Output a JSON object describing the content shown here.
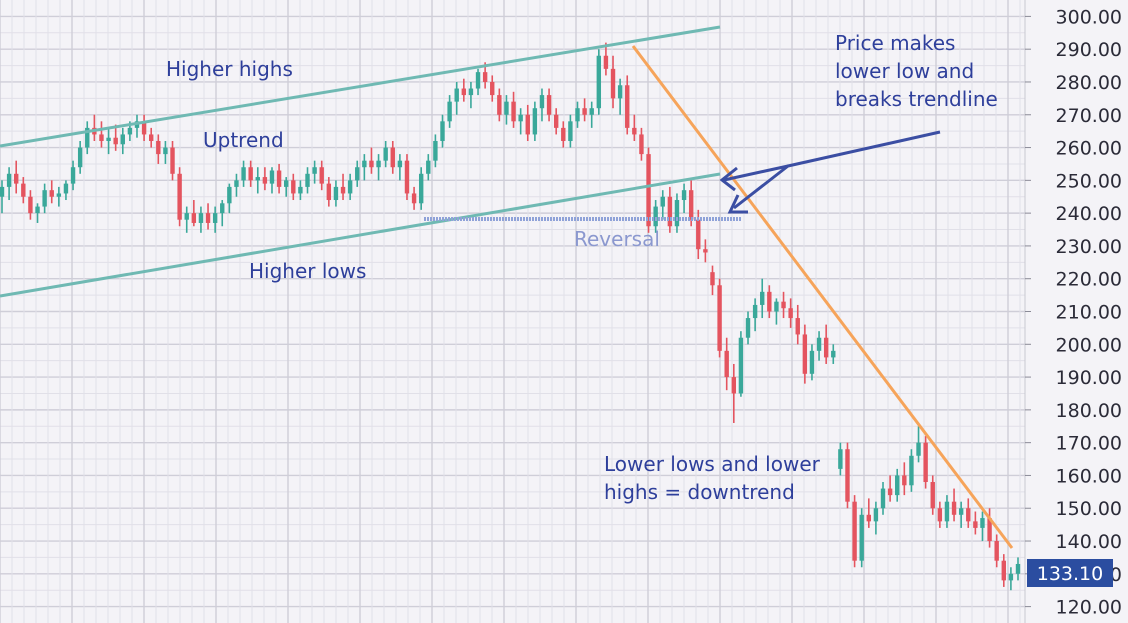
{
  "chart_data": {
    "type": "candlestick",
    "ylim": [
      115,
      305
    ],
    "y_ticks": [
      "300.00",
      "290.00",
      "280.00",
      "270.00",
      "260.00",
      "250.00",
      "240.00",
      "230.00",
      "220.00",
      "210.00",
      "200.00",
      "190.00",
      "180.00",
      "170.00",
      "160.00",
      "150.00",
      "140.00",
      "130.00",
      "120.00"
    ],
    "current_price": "133.10",
    "colors": {
      "up": "#3aa89a",
      "down": "#e4545f",
      "channel": "#6fb9b3",
      "trend": "#f6a45a",
      "arrow": "#3b4ea3",
      "tag": "#2b4da0",
      "reversal_line": "#8fa2d8"
    },
    "candles": [
      [
        245,
        250,
        240,
        248
      ],
      [
        248,
        254,
        244,
        252
      ],
      [
        252,
        256,
        246,
        249
      ],
      [
        249,
        251,
        243,
        245
      ],
      [
        245,
        247,
        238,
        240
      ],
      [
        240,
        243,
        237,
        242
      ],
      [
        242,
        249,
        240,
        247
      ],
      [
        247,
        250,
        243,
        245
      ],
      [
        245,
        248,
        242,
        246
      ],
      [
        246,
        250,
        244,
        249
      ],
      [
        249,
        256,
        247,
        254
      ],
      [
        254,
        262,
        252,
        260
      ],
      [
        260,
        268,
        258,
        266
      ],
      [
        266,
        270,
        262,
        264
      ],
      [
        264,
        268,
        260,
        262
      ],
      [
        262,
        266,
        258,
        263
      ],
      [
        263,
        267,
        259,
        261
      ],
      [
        261,
        266,
        258,
        264
      ],
      [
        264,
        268,
        262,
        266
      ],
      [
        266,
        270,
        263,
        268
      ],
      [
        268,
        270,
        262,
        264
      ],
      [
        264,
        266,
        260,
        262
      ],
      [
        262,
        264,
        255,
        258
      ],
      [
        258,
        262,
        255,
        260
      ],
      [
        260,
        262,
        250,
        252
      ],
      [
        252,
        254,
        236,
        238
      ],
      [
        238,
        242,
        234,
        240
      ],
      [
        240,
        244,
        236,
        237
      ],
      [
        237,
        242,
        234,
        240
      ],
      [
        240,
        243,
        235,
        237
      ],
      [
        237,
        242,
        234,
        240
      ],
      [
        240,
        244,
        236,
        243
      ],
      [
        243,
        249,
        240,
        248
      ],
      [
        248,
        252,
        245,
        250
      ],
      [
        250,
        256,
        248,
        254
      ],
      [
        254,
        256,
        248,
        250
      ],
      [
        250,
        254,
        246,
        251
      ],
      [
        251,
        254,
        247,
        249
      ],
      [
        249,
        254,
        246,
        253
      ],
      [
        253,
        255,
        246,
        248
      ],
      [
        248,
        251,
        245,
        250
      ],
      [
        250,
        252,
        244,
        246
      ],
      [
        246,
        250,
        244,
        248
      ],
      [
        248,
        254,
        246,
        252
      ],
      [
        252,
        256,
        249,
        254
      ],
      [
        254,
        256,
        247,
        249
      ],
      [
        249,
        251,
        242,
        244
      ],
      [
        244,
        250,
        242,
        248
      ],
      [
        248,
        252,
        244,
        246
      ],
      [
        246,
        252,
        244,
        250
      ],
      [
        250,
        256,
        248,
        254
      ],
      [
        254,
        258,
        250,
        256
      ],
      [
        256,
        260,
        252,
        254
      ],
      [
        254,
        258,
        250,
        256
      ],
      [
        256,
        262,
        254,
        260
      ],
      [
        260,
        262,
        252,
        254
      ],
      [
        254,
        258,
        250,
        256
      ],
      [
        256,
        258,
        244,
        246
      ],
      [
        246,
        248,
        241,
        243
      ],
      [
        243,
        254,
        241,
        252
      ],
      [
        252,
        258,
        250,
        256
      ],
      [
        256,
        264,
        254,
        262
      ],
      [
        262,
        270,
        260,
        268
      ],
      [
        268,
        276,
        266,
        274
      ],
      [
        274,
        280,
        270,
        278
      ],
      [
        278,
        281,
        274,
        276
      ],
      [
        276,
        280,
        272,
        278
      ],
      [
        278,
        284,
        276,
        283
      ],
      [
        283,
        286,
        278,
        280
      ],
      [
        280,
        282,
        274,
        276
      ],
      [
        276,
        278,
        268,
        270
      ],
      [
        270,
        276,
        267,
        274
      ],
      [
        274,
        277,
        266,
        268
      ],
      [
        268,
        272,
        264,
        270
      ],
      [
        270,
        273,
        262,
        264
      ],
      [
        264,
        274,
        262,
        272
      ],
      [
        272,
        278,
        268,
        276
      ],
      [
        276,
        278,
        268,
        270
      ],
      [
        270,
        272,
        264,
        266
      ],
      [
        266,
        268,
        260,
        262
      ],
      [
        262,
        270,
        260,
        268
      ],
      [
        268,
        274,
        266,
        272
      ],
      [
        272,
        275,
        268,
        270
      ],
      [
        270,
        274,
        266,
        272
      ],
      [
        272,
        290,
        270,
        288
      ],
      [
        288,
        292,
        282,
        284
      ],
      [
        284,
        288,
        272,
        275
      ],
      [
        275,
        281,
        270,
        279
      ],
      [
        279,
        282,
        264,
        266
      ],
      [
        266,
        270,
        262,
        264
      ],
      [
        264,
        266,
        256,
        258
      ],
      [
        258,
        260,
        234,
        236
      ],
      [
        236,
        244,
        234,
        242
      ],
      [
        242,
        247,
        238,
        245
      ],
      [
        245,
        248,
        234,
        236
      ],
      [
        236,
        246,
        234,
        244
      ],
      [
        244,
        249,
        240,
        247
      ],
      [
        247,
        250,
        236,
        238
      ],
      [
        238,
        241,
        226,
        229
      ],
      [
        229,
        232,
        225,
        228
      ],
      [
        222,
        224,
        215,
        218
      ],
      [
        218,
        220,
        196,
        198
      ],
      [
        198,
        202,
        186,
        190
      ],
      [
        190,
        194,
        176,
        185
      ],
      [
        185,
        204,
        184,
        202
      ],
      [
        202,
        210,
        200,
        208
      ],
      [
        208,
        214,
        204,
        212
      ],
      [
        212,
        220,
        208,
        216
      ],
      [
        216,
        218,
        208,
        210
      ],
      [
        210,
        214,
        206,
        213
      ],
      [
        213,
        216,
        208,
        211
      ],
      [
        211,
        214,
        205,
        208
      ],
      [
        208,
        212,
        200,
        203
      ],
      [
        203,
        206,
        188,
        191
      ],
      [
        191,
        200,
        189,
        198
      ],
      [
        198,
        204,
        195,
        202
      ],
      [
        202,
        206,
        194,
        196
      ],
      [
        196,
        200,
        194,
        198
      ],
      [
        162,
        170,
        160,
        168
      ],
      [
        168,
        170,
        150,
        152
      ],
      [
        152,
        154,
        132,
        134
      ],
      [
        134,
        150,
        132,
        148
      ],
      [
        148,
        153,
        144,
        146
      ],
      [
        146,
        152,
        142,
        150
      ],
      [
        150,
        158,
        148,
        156
      ],
      [
        156,
        160,
        152,
        154
      ],
      [
        154,
        162,
        152,
        160
      ],
      [
        160,
        164,
        154,
        157
      ],
      [
        157,
        168,
        155,
        166
      ],
      [
        166,
        175,
        164,
        170
      ],
      [
        170,
        172,
        156,
        158
      ],
      [
        158,
        160,
        148,
        150
      ],
      [
        150,
        152,
        144,
        146
      ],
      [
        146,
        154,
        144,
        152
      ],
      [
        152,
        156,
        146,
        148
      ],
      [
        148,
        152,
        144,
        150
      ],
      [
        150,
        153,
        144,
        146
      ],
      [
        146,
        149,
        142,
        144
      ],
      [
        144,
        149,
        140,
        147
      ],
      [
        147,
        150,
        138,
        140
      ],
      [
        140,
        142,
        132,
        134
      ],
      [
        134,
        136,
        126,
        128
      ],
      [
        128,
        132,
        125,
        130
      ],
      [
        130,
        135,
        128,
        133
      ]
    ],
    "annotations": {
      "higher_highs": "Higher highs",
      "uptrend": "Uptrend",
      "higher_lows": "Higher lows",
      "reversal": "Reversal",
      "price_makes_1": "Price makes",
      "price_makes_2": "lower low and",
      "price_makes_3": "breaks trendline",
      "lower_lows_1": "Lower lows and lower",
      "lower_lows_2": "highs = downtrend"
    }
  }
}
